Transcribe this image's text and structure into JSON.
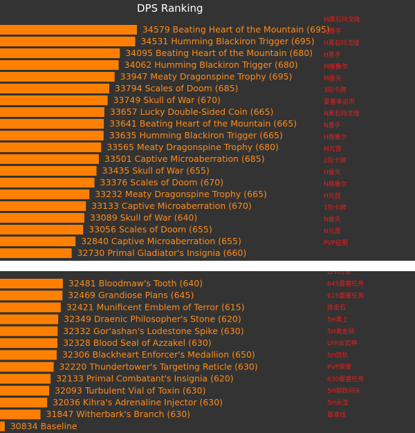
{
  "chart_data": [
    {
      "type": "bar",
      "title": "DPS Ranking",
      "bar_color": "#ff8000",
      "label_color": "#ff8c1a",
      "annotation_color": "#e02020",
      "xlim": [
        30700,
        34600
      ],
      "entries": [
        {
          "value": 34579,
          "name": "Beating Heart of the Mountain (695)",
          "note": "M黑石玛戈隆"
        },
        {
          "value": 34531,
          "name": "Humming Blackiron Trigger (695)",
          "note": "M墨手"
        },
        {
          "value": 34095,
          "name": "Beating Heart of the Mountain (680)",
          "note": "H黑石玛戈隆"
        },
        {
          "value": 34062,
          "name": "Humming Blackiron Trigger (680)",
          "note": "H墨手"
        },
        {
          "value": 33947,
          "name": "Meaty Dragonspine Trophy (695)",
          "note": "M格鲁尔"
        },
        {
          "value": 33794,
          "name": "Scales of Doom (685)",
          "note": "M雷天"
        },
        {
          "value": 33749,
          "name": "Skull of War (670)",
          "note": "3阶卡牌"
        },
        {
          "value": 33657,
          "name": "Lucky Double-Sided Coin (665)",
          "note": "要塞幸运币"
        },
        {
          "value": 33641,
          "name": "Beating Heart of the Mountain (665)",
          "note": "N黑石玛戈隆"
        },
        {
          "value": 33635,
          "name": "Humming Blackiron Trigger (665)",
          "note": "N墨手"
        },
        {
          "value": 33565,
          "name": "Meaty Dragonspine Trophy (680)",
          "note": "H格鲁尔"
        },
        {
          "value": 33501,
          "name": "Captive Microaberration (685)",
          "note": "M元首"
        },
        {
          "value": 33435,
          "name": "Skull of War (655)",
          "note": "2阶卡牌"
        },
        {
          "value": 33376,
          "name": "Scales of Doom (670)",
          "note": "H雷天"
        },
        {
          "value": 33232,
          "name": "Meaty Dragonspine Trophy (665)",
          "note": "N格鲁尔"
        },
        {
          "value": 33133,
          "name": "Captive Microaberration (670)",
          "note": "H元首"
        },
        {
          "value": 33089,
          "name": "Skull of War (640)",
          "note": "1阶卡牌"
        },
        {
          "value": 33056,
          "name": "Scales of Doom (655)",
          "note": "N雷天"
        },
        {
          "value": 32840,
          "name": "Captive Microaberration (655)",
          "note": "N元首"
        },
        {
          "value": 32730,
          "name": "Primal Gladiator's Insignia (660)",
          "note": "PVP征服"
        }
      ]
    },
    {
      "type": "bar",
      "bar_color": "#ff8000",
      "label_color": "#ff8c1a",
      "annotation_color": "#e02020",
      "xlim": [
        30700,
        34600
      ],
      "entries": [
        {
          "value": 32481,
          "name": "Bloodmaw's Tooth (640)",
          "note": "LFR刃拳"
        },
        {
          "value": 32469,
          "name": "Grandiose Plans (645)",
          "note": "645要塞任务"
        },
        {
          "value": 32421,
          "name": "Munificent Emblem of Terror (615)",
          "note": "615要塞任务"
        },
        {
          "value": 32349,
          "name": "Draenic Philosopher's Stone (620)",
          "note": "炼金石"
        },
        {
          "value": 32332,
          "name": "Gor'ashan's Lodestone Spike (630)",
          "note": "5H黑上"
        },
        {
          "value": 32328,
          "name": "Blood Seal of Azzakel (630)",
          "note": "5H奥金顿"
        },
        {
          "value": 32306,
          "name": "Blackheart Enforcer's Medallion (650)",
          "note": "LFR女武神"
        },
        {
          "value": 32220,
          "name": "Thundertower's Targeting Reticle (630)",
          "note": "5H恐轨"
        },
        {
          "value": 32133,
          "name": "Primal Combatant's Insignia (620)",
          "note": "PVP荣誉"
        },
        {
          "value": 32093,
          "name": "Turbulent Vial of Toxin (630)",
          "note": "630要塞任务"
        },
        {
          "value": 32036,
          "name": "Kihra's Adrenaline Injector (630)",
          "note": "5H钢铁码头"
        },
        {
          "value": 31847,
          "name": "Witherbark's Branch (630)",
          "note": "5H永茂"
        },
        {
          "value": 30834,
          "name": "Baseline",
          "note": "基准线"
        }
      ]
    }
  ]
}
